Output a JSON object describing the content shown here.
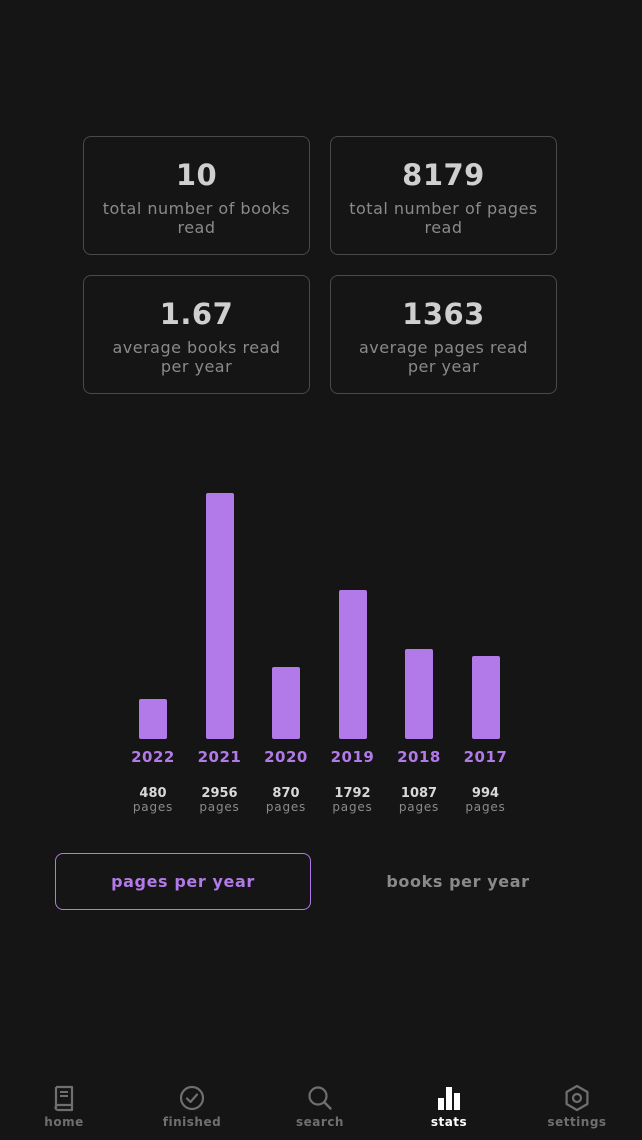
{
  "stats": [
    {
      "value": "10",
      "label": "total number of books read"
    },
    {
      "value": "8179",
      "label": "total number of pages read"
    },
    {
      "value": "1.67",
      "label": "average books read per year"
    },
    {
      "value": "1363",
      "label": "average pages read per year"
    }
  ],
  "chart_data": {
    "type": "bar",
    "categories": [
      "2022",
      "2021",
      "2020",
      "2019",
      "2018",
      "2017"
    ],
    "values": [
      480,
      2956,
      870,
      1792,
      1087,
      994
    ],
    "value_labels": [
      "480",
      "2956",
      "870",
      "1792",
      "1087",
      "994"
    ],
    "unit": "pages",
    "bar_color": "#b27ae8",
    "grid": false
  },
  "toggle": {
    "pages_label": "pages per year",
    "books_label": "books per year",
    "active": "pages"
  },
  "nav": [
    {
      "label": "home",
      "icon": "book-icon"
    },
    {
      "label": "finished",
      "icon": "check-circle-icon"
    },
    {
      "label": "search",
      "icon": "search-icon"
    },
    {
      "label": "stats",
      "icon": "bar-chart-icon"
    },
    {
      "label": "settings",
      "icon": "gear-icon"
    }
  ],
  "nav_active": "stats",
  "colors": {
    "background": "#151515",
    "accent": "#b27ae8",
    "card_border": "#4a4a4a",
    "muted_text": "#8a8a8a"
  }
}
